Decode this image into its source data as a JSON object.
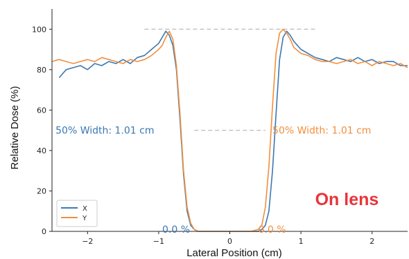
{
  "chart_data": {
    "type": "line",
    "xlabel": "Lateral Position",
    "xlabel_unit": "(cm)",
    "ylabel": "Relative Dose (%)",
    "xlim": [
      -2.5,
      2.5
    ],
    "ylim": [
      0,
      110
    ],
    "x_ticks": [
      -2,
      -1,
      0,
      1,
      2
    ],
    "x_tick_labels": [
      "−2",
      "−1",
      "0",
      "1",
      "2"
    ],
    "y_ticks": [
      0,
      20,
      40,
      60,
      80,
      100
    ],
    "y_tick_labels": [
      "0",
      "20",
      "40",
      "60",
      "80",
      "100"
    ],
    "grid": false,
    "legend_position": "lower-left",
    "series": [
      {
        "name": "X",
        "color": "#3a78b3",
        "x": [
          -2.4,
          -2.3,
          -2.2,
          -2.1,
          -2.0,
          -1.9,
          -1.8,
          -1.7,
          -1.6,
          -1.5,
          -1.4,
          -1.3,
          -1.2,
          -1.1,
          -1.0,
          -0.95,
          -0.9,
          -0.85,
          -0.8,
          -0.75,
          -0.7,
          -0.65,
          -0.6,
          -0.55,
          -0.5,
          -0.45,
          -0.4,
          -0.3,
          -0.2,
          -0.1,
          0.0,
          0.1,
          0.2,
          0.3,
          0.4,
          0.45,
          0.5,
          0.55,
          0.6,
          0.65,
          0.7,
          0.75,
          0.8,
          0.85,
          0.9,
          1.0,
          1.1,
          1.2,
          1.3,
          1.4,
          1.5,
          1.6,
          1.7,
          1.8,
          1.9,
          2.0,
          2.1,
          2.2,
          2.3,
          2.4,
          2.5
        ],
        "y": [
          76,
          80,
          81,
          82,
          80,
          83,
          82,
          84,
          83,
          85,
          83,
          86,
          87,
          90,
          93,
          96,
          99,
          97,
          92,
          80,
          55,
          28,
          10,
          3,
          1,
          0,
          0,
          0,
          0,
          0,
          0,
          0,
          0,
          0,
          0,
          1,
          3,
          10,
          30,
          58,
          85,
          96,
          99,
          97,
          94,
          90,
          88,
          86,
          85,
          84,
          86,
          85,
          84,
          86,
          84,
          85,
          83,
          84,
          84,
          82,
          82
        ]
      },
      {
        "name": "Y",
        "color": "#f28e3c",
        "x": [
          -2.5,
          -2.4,
          -2.3,
          -2.2,
          -2.1,
          -2.0,
          -1.9,
          -1.8,
          -1.7,
          -1.6,
          -1.5,
          -1.4,
          -1.3,
          -1.2,
          -1.1,
          -1.0,
          -0.95,
          -0.9,
          -0.85,
          -0.8,
          -0.75,
          -0.7,
          -0.65,
          -0.6,
          -0.55,
          -0.5,
          -0.45,
          -0.4,
          -0.3,
          -0.2,
          -0.1,
          0.0,
          0.1,
          0.2,
          0.3,
          0.4,
          0.45,
          0.5,
          0.55,
          0.6,
          0.65,
          0.7,
          0.75,
          0.8,
          0.85,
          0.9,
          1.0,
          1.1,
          1.2,
          1.3,
          1.4,
          1.5,
          1.6,
          1.7,
          1.8,
          1.9,
          2.0,
          2.1,
          2.2,
          2.3,
          2.4,
          2.5
        ],
        "y": [
          84,
          85,
          84,
          83,
          84,
          85,
          84,
          86,
          85,
          84,
          83,
          85,
          84,
          85,
          87,
          90,
          92,
          96,
          99,
          95,
          82,
          58,
          30,
          12,
          4,
          1,
          0,
          0,
          0,
          0,
          0,
          0,
          0,
          0,
          0,
          1,
          3,
          12,
          32,
          62,
          88,
          98,
          100,
          98,
          95,
          91,
          88,
          87,
          85,
          84,
          84,
          83,
          84,
          85,
          83,
          84,
          82,
          84,
          83,
          82,
          83,
          81
        ]
      }
    ],
    "reference_lines": [
      {
        "y": 100,
        "x_from": -1.2,
        "x_to": 1.2,
        "color": "#bbbbbb"
      },
      {
        "y": 50,
        "x_from": -0.5,
        "x_to": 0.5,
        "color": "#bbbbbb"
      }
    ],
    "annotations": [
      {
        "text": "50% Width: 1.01 cm",
        "x": -2.45,
        "y": 50,
        "color": "#3a78b3"
      },
      {
        "text": "50% Width: 1.01 cm",
        "x": 0.6,
        "y": 50,
        "color": "#f28e3c"
      },
      {
        "text": "0.0 %",
        "x": -0.95,
        "y": 1,
        "color": "#3a78b3"
      },
      {
        "text": "0.0 %",
        "x": 0.4,
        "y": 1,
        "color": "#f28e3c"
      },
      {
        "text": "On lens",
        "x": 1.2,
        "y": 13,
        "color": "#e8343a"
      }
    ]
  }
}
